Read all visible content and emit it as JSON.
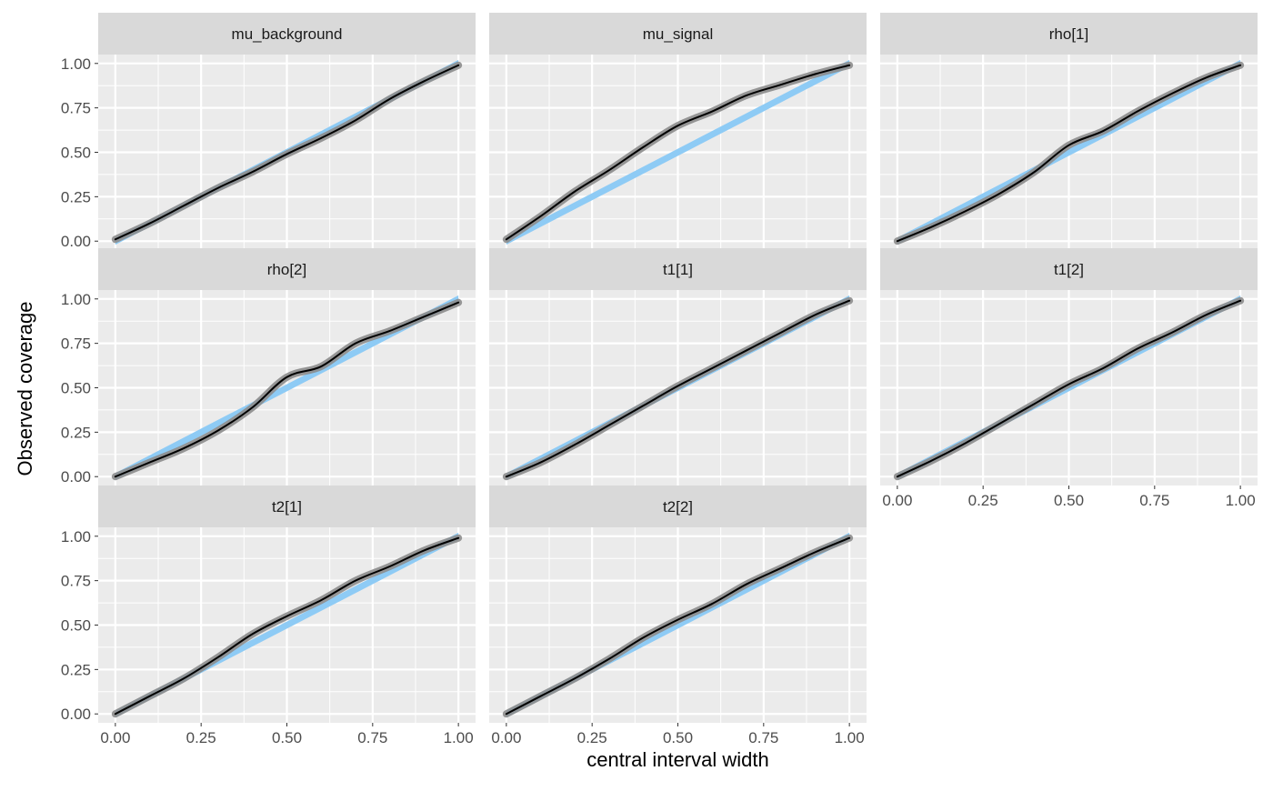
{
  "chart_data": {
    "type": "line",
    "layout": "facet-wrap, 3 columns",
    "xlabel": "central interval width",
    "ylabel": "Observed coverage",
    "xlim": [
      0,
      1
    ],
    "ylim": [
      0,
      1
    ],
    "x_ticks": [
      "0.00",
      "0.25",
      "0.50",
      "0.75",
      "1.00"
    ],
    "y_ticks": [
      "0.00",
      "0.25",
      "0.50",
      "0.75",
      "1.00"
    ],
    "x_tick_values": [
      0,
      0.25,
      0.5,
      0.75,
      1
    ],
    "y_tick_values": [
      0,
      0.25,
      0.5,
      0.75,
      1
    ],
    "grid": true,
    "colors": {
      "panel_background": "#ebebeb",
      "strip_background": "#d9d9d9",
      "gridline": "#ffffff",
      "reference_band": "#8ecbf5",
      "uncertainty_band": "#8c8c8c",
      "observed_line": "#000000",
      "axis_text": "#4d4d4d",
      "strip_text": "#1a1a1a",
      "title_text": "#000000"
    },
    "x": [
      0,
      0.1,
      0.2,
      0.3,
      0.4,
      0.5,
      0.6,
      0.7,
      0.8,
      0.9,
      1.0
    ],
    "facets": [
      {
        "name": "mu_background",
        "observed": [
          0.01,
          0.1,
          0.2,
          0.3,
          0.39,
          0.49,
          0.58,
          0.68,
          0.8,
          0.9,
          0.99
        ]
      },
      {
        "name": "mu_signal",
        "observed": [
          0.01,
          0.14,
          0.28,
          0.4,
          0.53,
          0.65,
          0.73,
          0.82,
          0.88,
          0.94,
          0.99
        ]
      },
      {
        "name": "rho[1]",
        "observed": [
          0.0,
          0.08,
          0.17,
          0.27,
          0.39,
          0.54,
          0.62,
          0.73,
          0.83,
          0.92,
          0.99
        ]
      },
      {
        "name": "rho[2]",
        "observed": [
          0.0,
          0.08,
          0.16,
          0.26,
          0.39,
          0.56,
          0.62,
          0.75,
          0.82,
          0.9,
          0.98
        ]
      },
      {
        "name": "t1[1]",
        "observed": [
          0.0,
          0.08,
          0.18,
          0.29,
          0.4,
          0.51,
          0.61,
          0.71,
          0.81,
          0.91,
          0.99
        ]
      },
      {
        "name": "t1[2]",
        "observed": [
          0.0,
          0.09,
          0.19,
          0.3,
          0.41,
          0.52,
          0.61,
          0.72,
          0.81,
          0.91,
          0.99
        ]
      },
      {
        "name": "t2[1]",
        "observed": [
          0.0,
          0.1,
          0.2,
          0.32,
          0.45,
          0.55,
          0.64,
          0.75,
          0.83,
          0.92,
          0.99
        ]
      },
      {
        "name": "t2[2]",
        "observed": [
          0.0,
          0.1,
          0.2,
          0.31,
          0.43,
          0.53,
          0.62,
          0.73,
          0.82,
          0.91,
          0.99
        ]
      }
    ]
  }
}
